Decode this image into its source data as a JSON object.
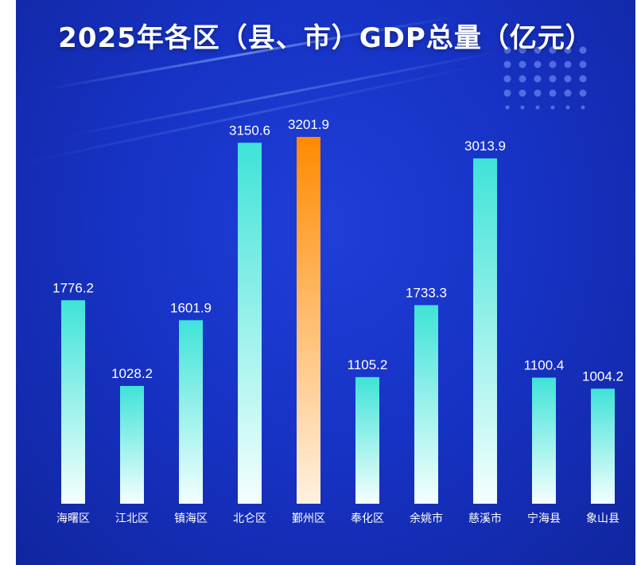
{
  "chart_data": {
    "type": "bar",
    "title": "2025年各区（县、市）GDP总量（亿元）",
    "categories": [
      "海曙区",
      "江北区",
      "镇海区",
      "北仑区",
      "鄞州区",
      "奉化区",
      "余姚市",
      "慈溪市",
      "宁海县",
      "象山县"
    ],
    "values": [
      1776.2,
      1028.2,
      1601.9,
      3150.6,
      3201.9,
      1105.2,
      1733.3,
      3013.9,
      1100.4,
      1004.2
    ],
    "value_labels": [
      "1776.2",
      "1028.2",
      "1601.9",
      "3150.6",
      "3201.9",
      "1105.2",
      "1733.3",
      "3013.9",
      "1100.4",
      "1004.2"
    ],
    "highlight_index": 4,
    "ylim": [
      0,
      3201.9
    ],
    "grid": false,
    "legend": "none",
    "xlabel": "",
    "ylabel": "",
    "colors": {
      "background": "#1733c6",
      "bar_top": "#3fe3d8",
      "bar_bottom": "#f4fffe",
      "highlight_top": "#ff8a00",
      "highlight_bottom": "#fff1e0",
      "text": "#ffffff"
    }
  }
}
